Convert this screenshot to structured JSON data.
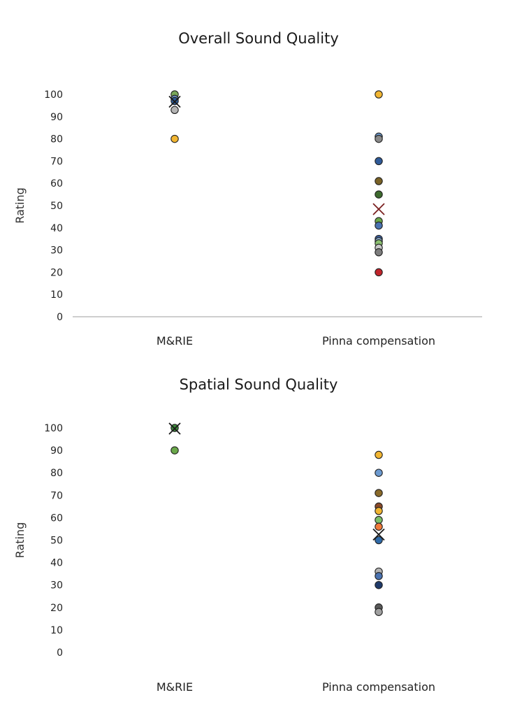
{
  "chart_data": [
    {
      "type": "scatter",
      "title": "Overall Sound Quality",
      "xlabel": "",
      "ylabel": "Rating",
      "ylim": [
        0,
        100
      ],
      "yticks": [
        0,
        10,
        20,
        30,
        40,
        50,
        60,
        70,
        80,
        90,
        100
      ],
      "categories": [
        "M&RIE",
        "Pinna compensation"
      ],
      "baseline": true,
      "points": [
        {
          "category": 0,
          "y": 100,
          "color": "#7aa85a"
        },
        {
          "category": 0,
          "y": 98,
          "color": "#6c8fc2"
        },
        {
          "category": 0,
          "y": 97,
          "color": "#2b5a96"
        },
        {
          "category": 0,
          "y": 93,
          "color": "#b4b4b4"
        },
        {
          "category": 0,
          "y": 80,
          "color": "#f2b632"
        },
        {
          "category": 1,
          "y": 100,
          "color": "#f2b632"
        },
        {
          "category": 1,
          "y": 81,
          "color": "#6c9ad0"
        },
        {
          "category": 1,
          "y": 80,
          "color": "#8a8a8a"
        },
        {
          "category": 1,
          "y": 70,
          "color": "#2f5a98"
        },
        {
          "category": 1,
          "y": 61,
          "color": "#7a6226"
        },
        {
          "category": 1,
          "y": 55,
          "color": "#3d6a2e"
        },
        {
          "category": 1,
          "y": 43,
          "color": "#6aa84a"
        },
        {
          "category": 1,
          "y": 41,
          "color": "#4a72b0"
        },
        {
          "category": 1,
          "y": 35,
          "color": "#3a5fa0"
        },
        {
          "category": 1,
          "y": 34,
          "color": "#8fb4d8"
        },
        {
          "category": 1,
          "y": 33,
          "color": "#8cc070"
        },
        {
          "category": 1,
          "y": 31,
          "color": "#c8c8c8"
        },
        {
          "category": 1,
          "y": 29,
          "color": "#7d7d7d"
        },
        {
          "category": 1,
          "y": 20,
          "color": "#c0242b"
        }
      ],
      "means": [
        {
          "category": 0,
          "y": 96.7,
          "color": "#1a1a1a"
        },
        {
          "category": 1,
          "y": 48.4,
          "color": "#7a1f1f"
        }
      ]
    },
    {
      "type": "scatter",
      "title": "Spatial Sound Quality",
      "xlabel": "",
      "ylabel": "Rating",
      "ylim": [
        0,
        100
      ],
      "yticks": [
        0,
        10,
        20,
        30,
        40,
        50,
        60,
        70,
        80,
        90,
        100
      ],
      "categories": [
        "M&RIE",
        "Pinna compensation"
      ],
      "baseline": false,
      "points": [
        {
          "category": 0,
          "y": 100,
          "color": "#3d8a3a"
        },
        {
          "category": 0,
          "y": 90,
          "color": "#6aa84a"
        },
        {
          "category": 1,
          "y": 88,
          "color": "#f2b632"
        },
        {
          "category": 1,
          "y": 80,
          "color": "#6c9ad0"
        },
        {
          "category": 1,
          "y": 71,
          "color": "#8a6a2a"
        },
        {
          "category": 1,
          "y": 65,
          "color": "#8a4a2a"
        },
        {
          "category": 1,
          "y": 63,
          "color": "#f2b632"
        },
        {
          "category": 1,
          "y": 59,
          "color": "#7cbf6a"
        },
        {
          "category": 1,
          "y": 56,
          "color": "#f07a3a"
        },
        {
          "category": 1,
          "y": 50,
          "color": "#2f6aa8"
        },
        {
          "category": 1,
          "y": 36,
          "color": "#b4b4b4"
        },
        {
          "category": 1,
          "y": 34,
          "color": "#4a72b0"
        },
        {
          "category": 1,
          "y": 30,
          "color": "#1f3a6a"
        },
        {
          "category": 1,
          "y": 20,
          "color": "#5a5a5a"
        },
        {
          "category": 1,
          "y": 18,
          "color": "#a0a0a0"
        }
      ],
      "means": [
        {
          "category": 0,
          "y": 99.7,
          "color": "#1a1a1a"
        },
        {
          "category": 1,
          "y": 52.5,
          "color": "#1a1a1a"
        }
      ]
    }
  ]
}
